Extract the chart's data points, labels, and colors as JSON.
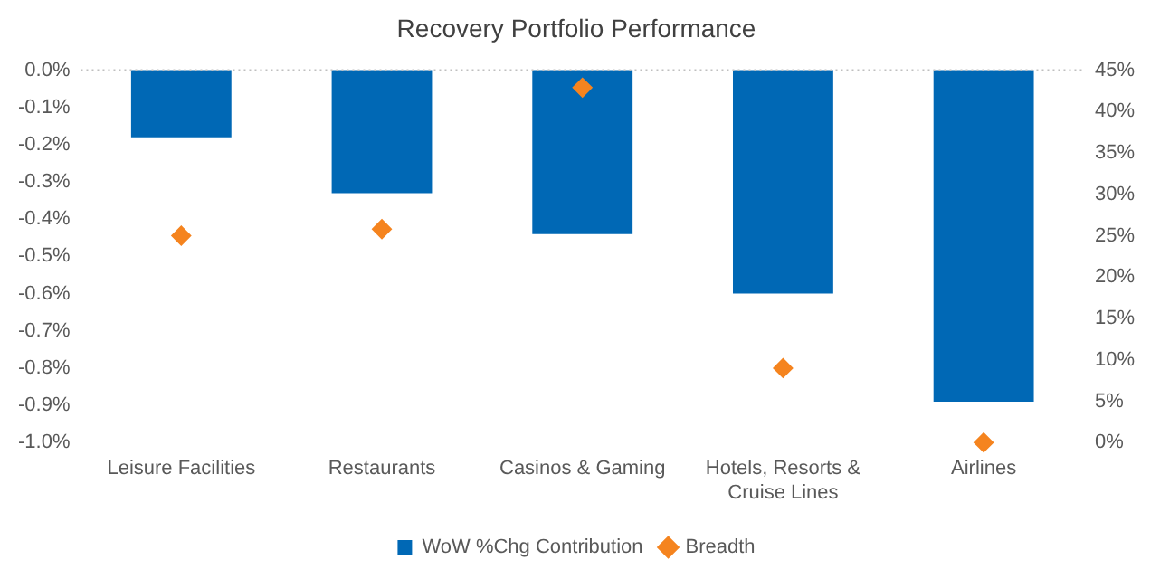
{
  "chart_data": {
    "type": "bar",
    "title": "Recovery Portfolio Performance",
    "categories": [
      "Leisure Facilities",
      "Restaurants",
      "Casinos & Gaming",
      "Hotels, Resorts & Cruise Lines",
      "Airlines"
    ],
    "series": [
      {
        "name": "WoW %Chg Contribution",
        "color": "#0068b5",
        "values": [
          -0.18,
          -0.33,
          -0.44,
          -0.6,
          -0.89
        ]
      },
      {
        "name": "Breadth",
        "type": "scatter",
        "axis": "y2",
        "marker": "diamond",
        "color": "#f5841f",
        "x": [
          "Leisure Facilities",
          "Restaurants",
          "Casinos & Gaming",
          "Hotels, Resorts & Cruise Lines",
          "Airlines"
        ],
        "values": [
          25,
          25.8,
          42.9,
          9,
          0
        ]
      }
    ],
    "ylim": [
      -1.0,
      0.0
    ],
    "yticks": [
      {
        "value": 0,
        "label": "0.0%"
      },
      {
        "value": -0.1,
        "label": "-0.1%"
      },
      {
        "value": -0.2,
        "label": "-0.2%"
      },
      {
        "value": -0.3,
        "label": "-0.3%"
      },
      {
        "value": -0.4,
        "label": "-0.4%"
      },
      {
        "value": -0.5,
        "label": "-0.5%"
      },
      {
        "value": -0.6,
        "label": "-0.6%"
      },
      {
        "value": -0.7,
        "label": "-0.7%"
      },
      {
        "value": -0.8,
        "label": "-0.8%"
      },
      {
        "value": -0.9,
        "label": "-0.9%"
      },
      {
        "value": -1.0,
        "label": "-1.0%"
      }
    ],
    "y2lim": [
      0,
      45
    ],
    "y2ticks": [
      {
        "value": 0,
        "label": "0%"
      },
      {
        "value": 5,
        "label": "5%"
      },
      {
        "value": 10,
        "label": "10%"
      },
      {
        "value": 15,
        "label": "15%"
      },
      {
        "value": 20,
        "label": "20%"
      },
      {
        "value": 25,
        "label": "25%"
      },
      {
        "value": 30,
        "label": "30%"
      },
      {
        "value": 35,
        "label": "35%"
      },
      {
        "value": 40,
        "label": "40%"
      },
      {
        "value": 45,
        "label": "45%"
      }
    ],
    "ref_lines": [
      {
        "axis": "y",
        "value": 0,
        "color": "#bfbfbf",
        "line_style": "dotted"
      }
    ],
    "grid": false,
    "legend": "bottom"
  }
}
